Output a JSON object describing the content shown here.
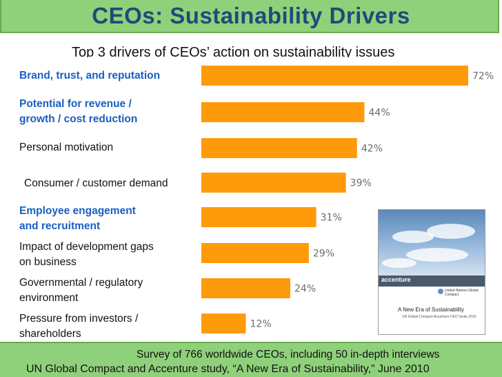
{
  "slide": {
    "title": "CEOs: Sustainability Drivers",
    "subtitle": "Top 3 drivers of CEOs’ action on sustainability issues"
  },
  "chart_data": {
    "type": "bar",
    "orientation": "horizontal",
    "title": "Top 3 drivers of CEOs’ action on sustainability issues",
    "categories": [
      "Brand, trust, and reputation",
      "Potential for revenue / growth / cost reduction",
      "Personal motivation",
      "Consumer / customer demand",
      "Employee engagement and recruitment",
      "Impact of development gaps on business",
      "Governmental / regulatory environment",
      "Pressure from investors / shareholders"
    ],
    "category_lines": [
      [
        "Brand, trust, and reputation"
      ],
      [
        "Potential for revenue /",
        "growth / cost reduction"
      ],
      [
        "Personal motivation"
      ],
      [
        "Consumer / customer demand"
      ],
      [
        "Employee engagement",
        "and recruitment"
      ],
      [
        "Impact of development gaps",
        "on business"
      ],
      [
        "Governmental / regulatory",
        "environment"
      ],
      [
        "Pressure from investors /",
        "shareholders"
      ]
    ],
    "highlighted": [
      true,
      true,
      false,
      false,
      true,
      false,
      false,
      false
    ],
    "values": [
      72,
      44,
      42,
      39,
      31,
      29,
      24,
      12
    ],
    "labels": [
      "72%",
      "44%",
      "42%",
      "39%",
      "31%",
      "29%",
      "24%",
      "12%"
    ],
    "unit": "%",
    "xlim": [
      0,
      100
    ],
    "bar_color": "#ff9a0a",
    "label_color": "#6b6b6b",
    "highlight_color": "#1a5fc0"
  },
  "footer": {
    "line1": "Survey of 766 worldwide CEOs, including 50 in-depth interviews",
    "line2": "UN Global Compact and Accenture study, “A New Era of Sustainability,” June 2010"
  },
  "report_cover": {
    "brand": "accenture",
    "partner": "United Nations Global Compact",
    "title": "A New Era of Sustainability",
    "subtitle": "UN Global Compact-Accenture CEO Study 2010"
  }
}
